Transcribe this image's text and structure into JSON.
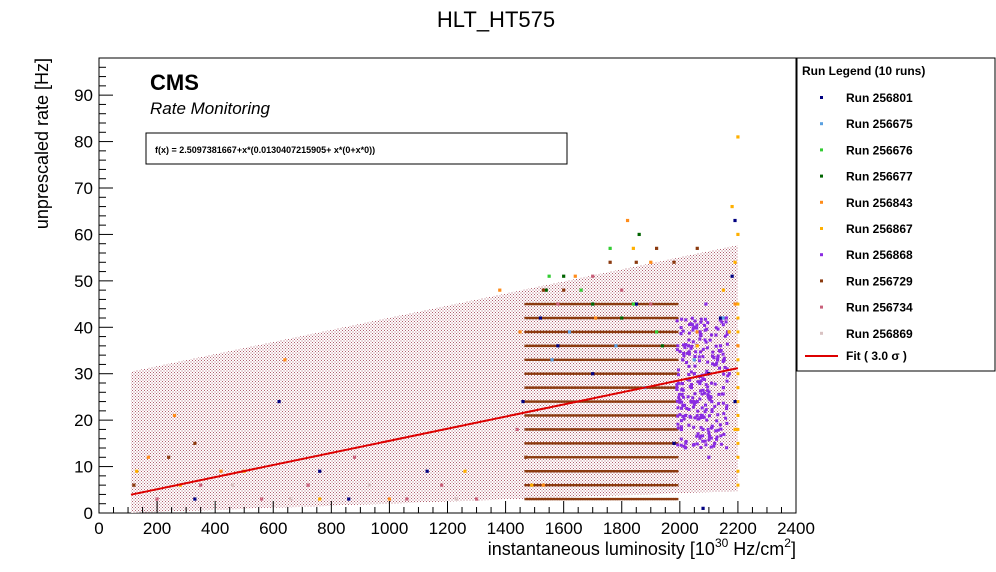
{
  "chart_data": {
    "type": "scatter",
    "title": "HLT_HT575",
    "xlabel_main": "instantaneous luminosity [10",
    "xlabel_exp": "30",
    "xlabel_rest": " Hz/cm",
    "xlabel_exp2": "2",
    "xlabel_close": "]",
    "ylabel": "unprescaled rate [Hz]",
    "xlim": [
      0,
      2400
    ],
    "ylim": [
      0,
      98
    ],
    "xticks": [
      "0",
      "200",
      "400",
      "600",
      "800",
      "1000",
      "1200",
      "1400",
      "1600",
      "1800",
      "2000",
      "2200",
      "2400"
    ],
    "yticks": [
      "0",
      "10",
      "20",
      "30",
      "40",
      "50",
      "60",
      "70",
      "80",
      "90"
    ],
    "cms_label": "CMS",
    "cms_sublabel": "Rate Monitoring",
    "fit_formula": "f(x) = 2.5097381667+x*(0.0130407215905+ x*(0+x*0))",
    "fit": {
      "intercept": 2.5097381667,
      "slope": 0.0130407215905,
      "xrange": [
        110,
        2200
      ],
      "sigma_band": 26.5
    },
    "legend_title": "Run Legend (10 runs)",
    "fit_label": "Fit ( 3.0  σ )",
    "series": [
      {
        "name": "Run 256801",
        "color": "#000080",
        "points": [
          [
            330,
            3
          ],
          [
            620,
            24
          ],
          [
            760,
            9
          ],
          [
            860,
            3
          ],
          [
            1130,
            9
          ],
          [
            1460,
            24
          ],
          [
            1520,
            42
          ],
          [
            1580,
            36
          ],
          [
            1700,
            30
          ],
          [
            1850,
            45
          ],
          [
            1980,
            15
          ],
          [
            2100,
            30
          ],
          [
            2140,
            42
          ],
          [
            2180,
            51
          ],
          [
            2190,
            63
          ],
          [
            2080,
            1
          ],
          [
            2190,
            24
          ]
        ]
      },
      {
        "name": "Run 256675",
        "color": "#5aa0e0",
        "points": [
          [
            1560,
            33
          ],
          [
            1620,
            39
          ],
          [
            1700,
            45
          ],
          [
            1780,
            36
          ],
          [
            1880,
            27
          ],
          [
            2050,
            33
          ],
          [
            2150,
            42
          ]
        ]
      },
      {
        "name": "Run 256676",
        "color": "#33cc33",
        "points": [
          [
            1550,
            51
          ],
          [
            1660,
            48
          ],
          [
            1760,
            57
          ],
          [
            1840,
            45
          ],
          [
            1920,
            39
          ]
        ]
      },
      {
        "name": "Run 256677",
        "color": "#006400",
        "points": [
          [
            1540,
            48
          ],
          [
            1600,
            51
          ],
          [
            1700,
            45
          ],
          [
            1800,
            42
          ],
          [
            1860,
            60
          ],
          [
            1940,
            36
          ]
        ]
      },
      {
        "name": "Run 256843",
        "color": "#ff8c1a",
        "points": [
          [
            170,
            12
          ],
          [
            260,
            21
          ],
          [
            420,
            9
          ],
          [
            640,
            33
          ],
          [
            1000,
            3
          ],
          [
            1380,
            48
          ],
          [
            1450,
            39
          ],
          [
            1530,
            6
          ],
          [
            1640,
            51
          ],
          [
            1710,
            42
          ],
          [
            1820,
            63
          ],
          [
            1900,
            54
          ],
          [
            2060,
            39
          ],
          [
            2190,
            45
          ],
          [
            2200,
            36
          ]
        ]
      },
      {
        "name": "Run 256867",
        "color": "#ffb000",
        "points": [
          [
            130,
            9
          ],
          [
            280,
            6
          ],
          [
            500,
            9
          ],
          [
            760,
            3
          ],
          [
            1260,
            9
          ],
          [
            1490,
            6
          ],
          [
            1840,
            57
          ],
          [
            2060,
            36
          ],
          [
            2150,
            48
          ],
          [
            2180,
            66
          ],
          [
            2200,
            81
          ],
          [
            2200,
            60
          ],
          [
            2190,
            54
          ],
          [
            2170,
            39
          ],
          [
            2190,
            18
          ]
        ]
      },
      {
        "name": "Run 256868",
        "color": "#8a2be2",
        "points": [
          [
            1990,
            27
          ],
          [
            2010,
            33
          ],
          [
            2030,
            36
          ],
          [
            2050,
            30
          ],
          [
            2070,
            39
          ],
          [
            2090,
            45
          ],
          [
            2110,
            24
          ],
          [
            2130,
            33
          ],
          [
            2150,
            27
          ],
          [
            2160,
            42
          ],
          [
            2020,
            21
          ],
          [
            2080,
            18
          ],
          [
            2100,
            12
          ],
          [
            2120,
            15
          ],
          [
            2140,
            36
          ],
          [
            2060,
            24
          ],
          [
            2040,
            27
          ],
          [
            2170,
            30
          ]
        ]
      },
      {
        "name": "Run 256729",
        "color": "#8b3a0f",
        "points": [
          [
            120,
            6
          ],
          [
            240,
            12
          ],
          [
            330,
            15
          ],
          [
            1470,
            12
          ],
          [
            1530,
            48
          ],
          [
            1600,
            48
          ],
          [
            1760,
            54
          ],
          [
            1850,
            54
          ],
          [
            1920,
            57
          ],
          [
            1980,
            54
          ],
          [
            2060,
            57
          ]
        ]
      },
      {
        "name": "Run 256734",
        "color": "#c9607a",
        "points": [
          [
            200,
            3
          ],
          [
            350,
            6
          ],
          [
            560,
            3
          ],
          [
            720,
            6
          ],
          [
            880,
            12
          ],
          [
            1060,
            3
          ],
          [
            1180,
            6
          ],
          [
            1300,
            3
          ],
          [
            1440,
            18
          ],
          [
            1580,
            45
          ],
          [
            1700,
            51
          ],
          [
            1800,
            48
          ],
          [
            1900,
            45
          ]
        ]
      },
      {
        "name": "Run 256869",
        "color": "#d9c2c2",
        "points": [
          [
            460,
            6
          ],
          [
            660,
            3
          ],
          [
            930,
            6
          ],
          [
            1230,
            3
          ]
        ]
      }
    ]
  }
}
